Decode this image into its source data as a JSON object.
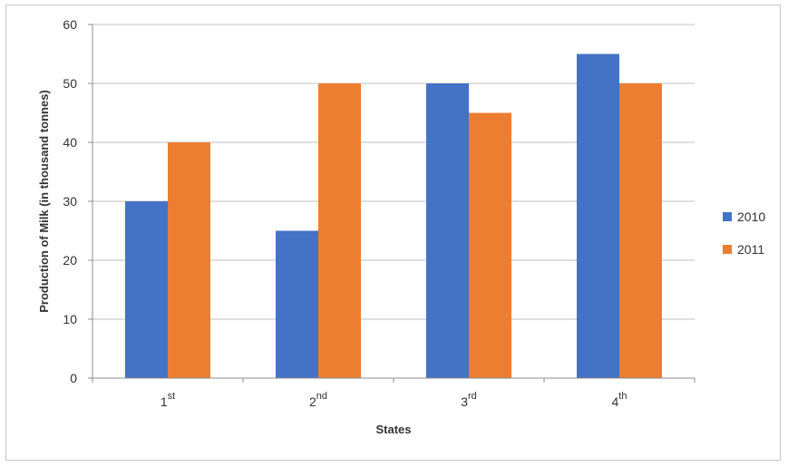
{
  "chart_data": {
    "type": "bar",
    "categories": [
      {
        "base": "1",
        "suffix": "st"
      },
      {
        "base": "2",
        "suffix": "nd"
      },
      {
        "base": "3",
        "suffix": "rd"
      },
      {
        "base": "4",
        "suffix": "th"
      }
    ],
    "series": [
      {
        "name": "2010",
        "color": "#4472C4",
        "values": [
          30,
          25,
          50,
          55
        ]
      },
      {
        "name": "2011",
        "color": "#ED7D31",
        "values": [
          40,
          50,
          45,
          50
        ]
      }
    ],
    "xlabel": "States",
    "ylabel": "Production of Milk (in thousand tonnes)",
    "ylim": [
      0,
      60
    ],
    "yticks": [
      0,
      10,
      20,
      30,
      40,
      50,
      60
    ],
    "grid": true,
    "legend_position": "right"
  }
}
